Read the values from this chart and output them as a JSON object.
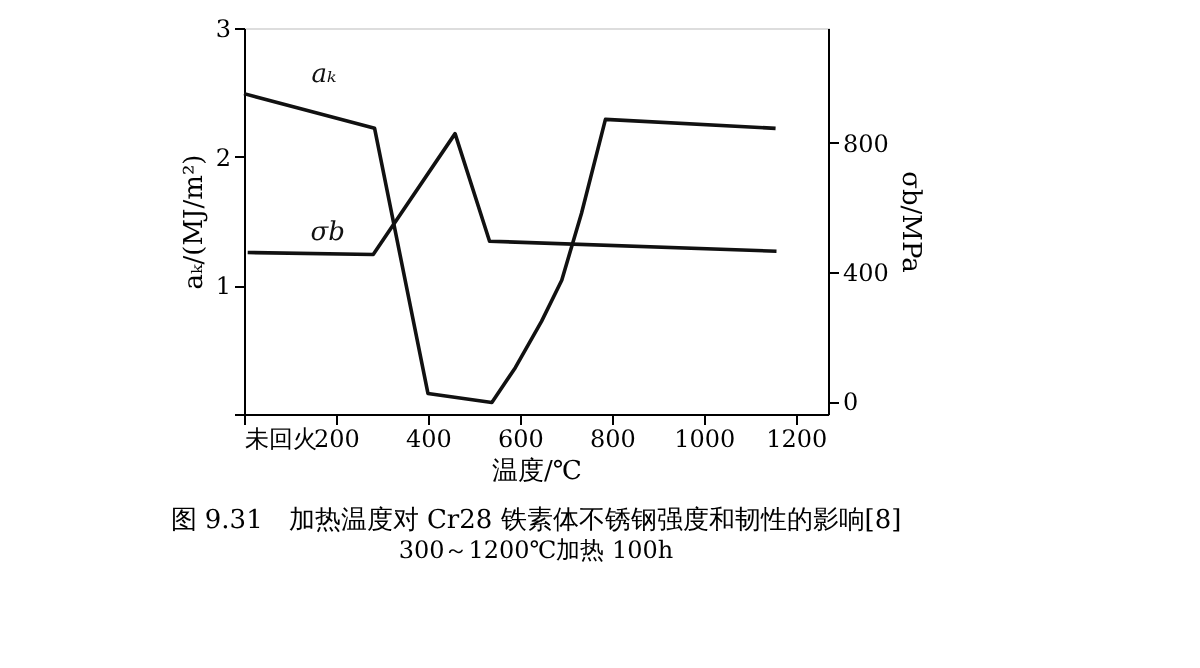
{
  "chart_data": {
    "type": "line",
    "title": "图 9.31　加热温度对 Cr28 铁素体不锈钢强度和韧性的影响[8]",
    "subtitle": "300～1200℃加热 100h",
    "xlabel": "温度/℃",
    "ylabel": "aₖ/(MJ/m²)",
    "y2label": "σb/MPa",
    "xlim": [
      0,
      1270
    ],
    "xticks": [
      {
        "value": 0,
        "label": "未回火"
      },
      200,
      400,
      600,
      800,
      1000,
      1200
    ],
    "ylim": [
      0,
      3
    ],
    "yticks": [
      {
        "value": 0,
        "label": null
      },
      1,
      2,
      3
    ],
    "y2lim": [
      -40,
      1155
    ],
    "y2ticks": [
      0,
      400,
      800
    ],
    "grid": false,
    "marker": "none",
    "line_style": "solid",
    "series": [
      {
        "name": "aₖ",
        "color": "#111111",
        "x": [
          0,
          284,
          400,
          539,
          590,
          647,
          691,
          734,
          786,
          1156
        ],
        "values": [
          2.49,
          2.22,
          0.16,
          0.09,
          0.36,
          0.72,
          1.04,
          1.56,
          2.29,
          2.22
        ]
      },
      {
        "name": "σb",
        "color": "#111111",
        "axis": "y2",
        "x": [
          8,
          281,
          459,
          534,
          1158
        ],
        "values": [
          460,
          454,
          828,
          495,
          464
        ]
      }
    ]
  }
}
